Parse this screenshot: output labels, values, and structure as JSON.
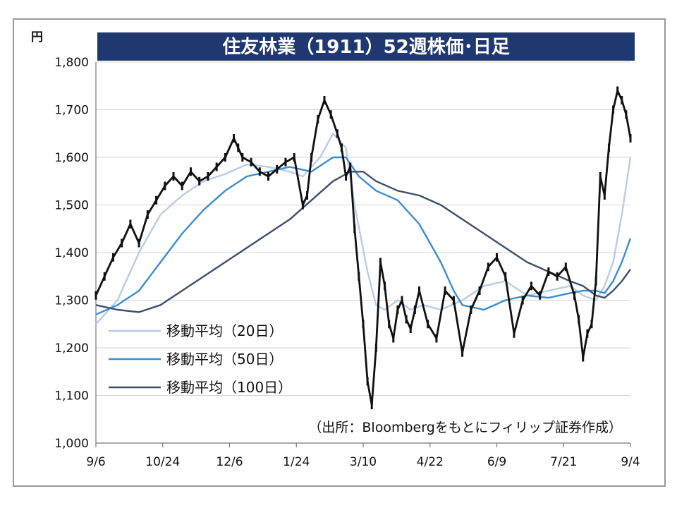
{
  "chart_data": {
    "type": "line",
    "title": "住友林業（1911）52週株価･日足",
    "unit_label": "円",
    "ylim": [
      1000,
      1800
    ],
    "y_ticks": [
      1000,
      1100,
      1200,
      1300,
      1400,
      1500,
      1600,
      1700,
      1800
    ],
    "y_tick_labels": [
      "1,000",
      "1,100",
      "1,200",
      "1,300",
      "1,400",
      "1,500",
      "1,600",
      "1,700",
      "1,800"
    ],
    "x_tick_labels": [
      "9/6",
      "10/24",
      "12/6",
      "1/24",
      "3/10",
      "4/22",
      "6/9",
      "7/21",
      "9/4"
    ],
    "grid": true,
    "source_note": "（出所：Bloombergをもとにフィリップ証券作成）",
    "price_color": "#111111",
    "x_index_range": [
      0,
      248
    ],
    "x_tick_index": [
      0,
      31,
      62,
      93,
      124,
      155,
      186,
      217,
      248
    ],
    "price": {
      "index": [
        0,
        4,
        8,
        12,
        16,
        20,
        24,
        28,
        32,
        36,
        40,
        44,
        48,
        52,
        56,
        60,
        64,
        66,
        68,
        72,
        76,
        80,
        84,
        88,
        92,
        96,
        98,
        100,
        103,
        106,
        109,
        112,
        114,
        116,
        118,
        120,
        122,
        124,
        126,
        128,
        130,
        132,
        134,
        136,
        138,
        140,
        142,
        144,
        146,
        148,
        150,
        154,
        158,
        162,
        166,
        170,
        174,
        178,
        182,
        186,
        190,
        194,
        198,
        202,
        206,
        210,
        214,
        218,
        222,
        224,
        226,
        228,
        230,
        232,
        234,
        236,
        238,
        240,
        242,
        244,
        246,
        248
      ],
      "values": [
        1310,
        1350,
        1390,
        1420,
        1460,
        1420,
        1480,
        1510,
        1540,
        1560,
        1540,
        1570,
        1550,
        1560,
        1580,
        1600,
        1640,
        1620,
        1600,
        1590,
        1570,
        1560,
        1575,
        1590,
        1600,
        1500,
        1520,
        1600,
        1680,
        1720,
        1690,
        1650,
        1620,
        1560,
        1580,
        1450,
        1350,
        1250,
        1130,
        1080,
        1200,
        1380,
        1330,
        1250,
        1220,
        1280,
        1300,
        1260,
        1240,
        1280,
        1320,
        1250,
        1220,
        1320,
        1300,
        1190,
        1280,
        1320,
        1370,
        1390,
        1350,
        1230,
        1300,
        1330,
        1310,
        1360,
        1350,
        1370,
        1310,
        1260,
        1180,
        1230,
        1250,
        1340,
        1560,
        1520,
        1620,
        1700,
        1740,
        1720,
        1690,
        1640
      ]
    },
    "series": [
      {
        "name": "移動平均（20日）",
        "color": "#b8cde8",
        "index": [
          0,
          10,
          20,
          30,
          40,
          50,
          60,
          70,
          80,
          90,
          96,
          104,
          110,
          116,
          120,
          126,
          130,
          134,
          140,
          146,
          152,
          160,
          170,
          180,
          190,
          200,
          210,
          220,
          226,
          232,
          236,
          240,
          244,
          248
        ],
        "values": [
          1250,
          1300,
          1400,
          1480,
          1520,
          1550,
          1565,
          1585,
          1580,
          1570,
          1560,
          1600,
          1650,
          1620,
          1500,
          1360,
          1290,
          1280,
          1300,
          1280,
          1290,
          1280,
          1300,
          1330,
          1340,
          1310,
          1320,
          1330,
          1310,
          1300,
          1330,
          1380,
          1480,
          1600
        ]
      },
      {
        "name": "移動平均（50日）",
        "color": "#3a8ecf",
        "index": [
          0,
          10,
          20,
          30,
          40,
          50,
          60,
          70,
          80,
          90,
          100,
          110,
          116,
          122,
          130,
          140,
          150,
          160,
          166,
          170,
          180,
          190,
          200,
          210,
          220,
          226,
          232,
          236,
          240,
          244,
          248
        ],
        "values": [
          1270,
          1290,
          1320,
          1380,
          1440,
          1490,
          1530,
          1560,
          1570,
          1580,
          1570,
          1600,
          1600,
          1560,
          1530,
          1510,
          1460,
          1380,
          1320,
          1290,
          1280,
          1300,
          1310,
          1305,
          1315,
          1320,
          1320,
          1315,
          1340,
          1380,
          1430
        ]
      },
      {
        "name": "移動平均（100日）",
        "color": "#3d4f6e",
        "index": [
          0,
          10,
          20,
          30,
          40,
          50,
          60,
          70,
          80,
          90,
          100,
          110,
          118,
          124,
          130,
          140,
          150,
          160,
          170,
          180,
          190,
          200,
          210,
          220,
          226,
          232,
          236,
          240,
          244,
          248
        ],
        "values": [
          1290,
          1280,
          1275,
          1290,
          1320,
          1350,
          1380,
          1410,
          1440,
          1470,
          1510,
          1550,
          1570,
          1570,
          1550,
          1530,
          1520,
          1500,
          1470,
          1440,
          1410,
          1380,
          1360,
          1340,
          1330,
          1310,
          1305,
          1320,
          1340,
          1365
        ]
      }
    ]
  }
}
